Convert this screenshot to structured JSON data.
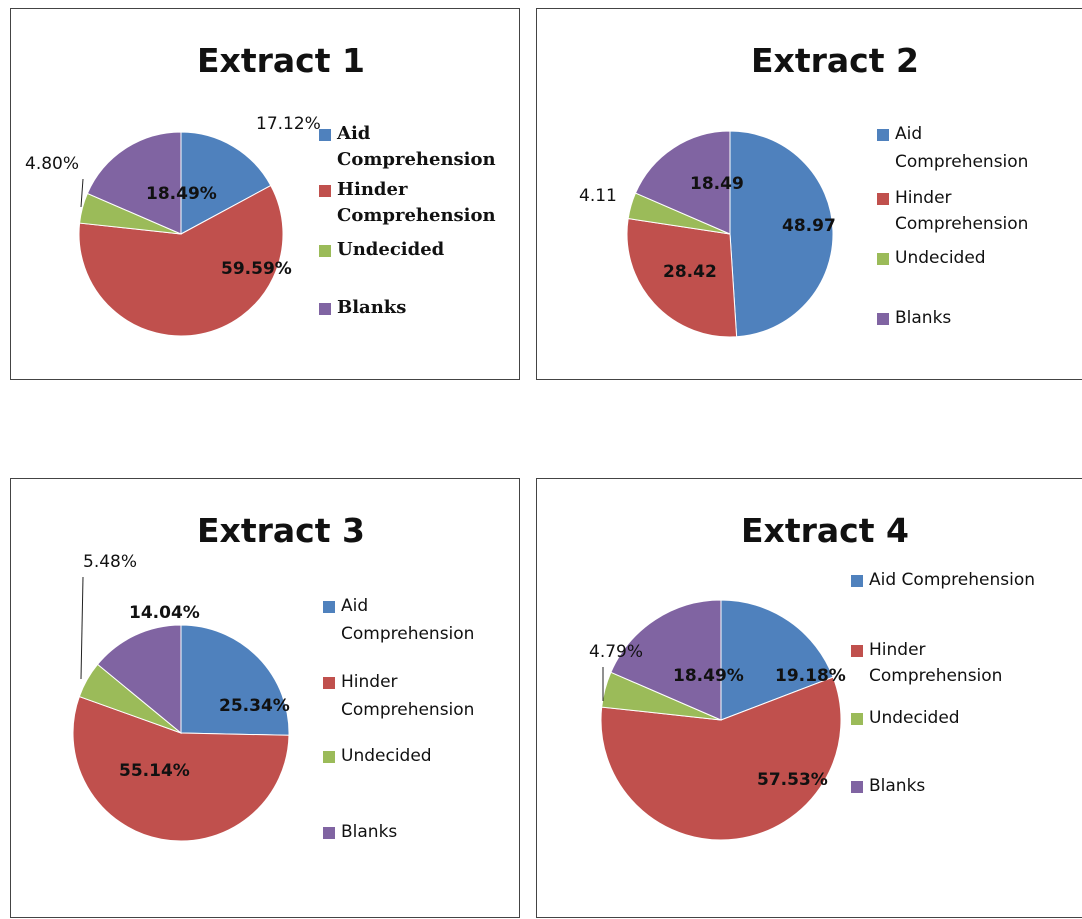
{
  "chart_data": [
    {
      "type": "pie",
      "title": "Extract 1",
      "categories": [
        "Aid Comprehension",
        "Hinder Comprehension",
        "Undecided",
        "Blanks"
      ],
      "values": [
        17.12,
        59.59,
        4.8,
        18.49
      ],
      "data_labels": [
        "17.12%",
        "59.59%",
        "4.80%",
        "18.49%"
      ],
      "colors": [
        "#4F81BD",
        "#C0504D",
        "#9BBB59",
        "#8064A2"
      ],
      "legend": [
        "Aid",
        "Comprehension",
        "Hinder",
        "Comprehension",
        "Undecided",
        "Blanks"
      ],
      "legend_placement": "right"
    },
    {
      "type": "pie",
      "title": "Extract 2",
      "categories": [
        "Aid Comprehension",
        "Hinder Comprehension",
        "Undecided",
        "Blanks"
      ],
      "values": [
        48.97,
        28.42,
        4.11,
        18.49
      ],
      "data_labels": [
        "48.97",
        "28.42",
        "4.11",
        "18.49"
      ],
      "colors": [
        "#4F81BD",
        "#C0504D",
        "#9BBB59",
        "#8064A2"
      ],
      "legend": [
        "Aid",
        "Comprehension",
        "Hinder",
        "Comprehension",
        "Undecided",
        "Blanks"
      ],
      "legend_placement": "right"
    },
    {
      "type": "pie",
      "title": "Extract 3",
      "categories": [
        "Aid Comprehension",
        "Hinder Comprehension",
        "Undecided",
        "Blanks"
      ],
      "values": [
        25.34,
        55.14,
        5.48,
        14.04
      ],
      "data_labels": [
        "25.34%",
        "55.14%",
        "5.48%",
        "14.04%"
      ],
      "colors": [
        "#4F81BD",
        "#C0504D",
        "#9BBB59",
        "#8064A2"
      ],
      "legend": [
        "Aid",
        "Comprehension",
        "Hinder",
        "Comprehension",
        "Undecided",
        "Blanks"
      ],
      "legend_placement": "right"
    },
    {
      "type": "pie",
      "title": "Extract 4",
      "categories": [
        "Aid Comprehension",
        "Hinder Comprehension",
        "Undecided",
        "Blanks"
      ],
      "values": [
        19.18,
        57.53,
        4.79,
        18.49
      ],
      "data_labels": [
        "19.18%",
        "57.53%",
        "4.79%",
        "18.49%"
      ],
      "colors": [
        "#4F81BD",
        "#C0504D",
        "#9BBB59",
        "#8064A2"
      ],
      "legend": [
        "Aid Comprehension",
        "Hinder",
        "Comprehension",
        "Undecided",
        "Blanks"
      ],
      "legend_placement": "right"
    }
  ]
}
